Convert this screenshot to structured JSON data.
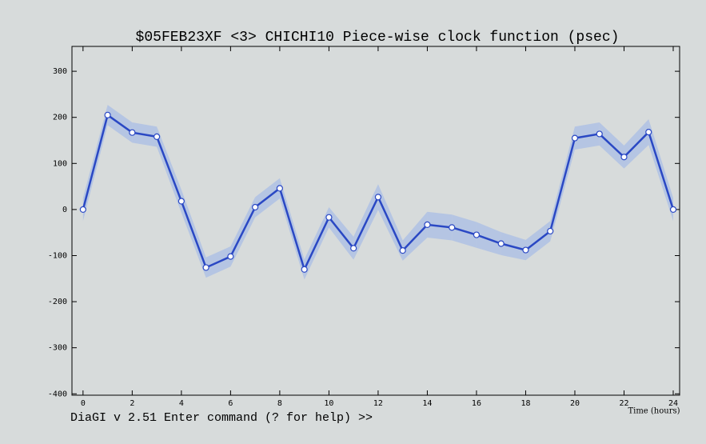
{
  "chart_data": {
    "type": "line",
    "title": "$05FEB23XF <3>  CHICHI10  Piece-wise clock function (psec)",
    "xlabel": "Time (hours)",
    "footer": "DiaGI v 2.51  Enter command (? for help) >>",
    "x": [
      0,
      1,
      2,
      3,
      4,
      5,
      6,
      7,
      8,
      9,
      10,
      11,
      12,
      13,
      14,
      15,
      16,
      17,
      18,
      19,
      20,
      21,
      22,
      23,
      24
    ],
    "series": [
      {
        "color": "#2a48c4",
        "values": [
          0,
          205,
          167,
          158,
          18,
          -126,
          -102,
          5,
          46,
          -130,
          -17,
          -84,
          27,
          -89,
          -33,
          -39,
          -55,
          -74,
          -88,
          -47,
          155,
          164,
          114,
          168,
          0
        ],
        "errors": [
          25,
          22,
          22,
          22,
          25,
          22,
          22,
          22,
          22,
          22,
          22,
          25,
          28,
          22,
          28,
          28,
          28,
          25,
          22,
          22,
          25,
          25,
          25,
          28,
          25
        ],
        "band_color": "#aabde6"
      }
    ],
    "xlim": [
      -0.45,
      24.26
    ],
    "ylim": [
      -403,
      354
    ],
    "xticks": [
      0,
      2,
      4,
      6,
      8,
      10,
      12,
      14,
      16,
      18,
      20,
      22,
      24
    ],
    "yticks": [
      -400,
      -300,
      -200,
      -100,
      0,
      100,
      200,
      300
    ]
  }
}
